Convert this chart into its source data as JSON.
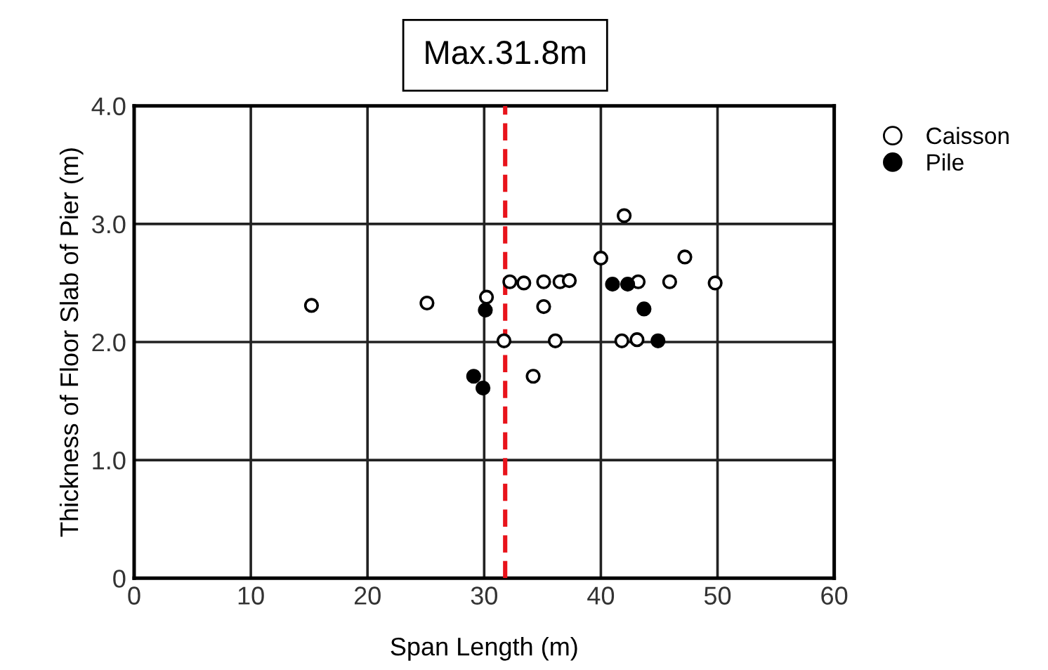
{
  "chart_data": {
    "type": "scatter",
    "xlabel": "Span Length (m)",
    "ylabel": "Thickness of Floor Slab of Pier (m)",
    "series": [
      {
        "name": "Caisson",
        "color": "#ffffff",
        "x": [
          15.2,
          25.1,
          30.2,
          32.2,
          33.4,
          35.1,
          36.5,
          37.3,
          35.1,
          31.7,
          36.1,
          34.2,
          40.0,
          42.0,
          43.2,
          45.9,
          47.2,
          49.8,
          41.8,
          43.1
        ],
        "values": [
          2.31,
          2.33,
          2.38,
          2.51,
          2.5,
          2.51,
          2.51,
          2.52,
          2.3,
          2.01,
          2.01,
          1.71,
          2.71,
          3.07,
          2.51,
          2.51,
          2.72,
          2.5,
          2.01,
          2.02
        ]
      },
      {
        "name": "Pile",
        "color": "#000000",
        "x": [
          30.1,
          29.1,
          29.9,
          41.0,
          42.3,
          43.7,
          44.9
        ],
        "values": [
          2.27,
          1.71,
          1.61,
          2.49,
          2.49,
          2.28,
          2.01
        ]
      }
    ],
    "xlim": [
      0,
      60
    ],
    "xticks": [
      0,
      10,
      20,
      30,
      40,
      50,
      60
    ],
    "ylim": [
      0,
      4
    ],
    "yticks": [
      {
        "value": 0,
        "label": "0"
      },
      {
        "value": 1,
        "label": "1.0"
      },
      {
        "value": 2,
        "label": "2.0"
      },
      {
        "value": 3,
        "label": "3.0"
      },
      {
        "value": 4,
        "label": "4.0"
      }
    ],
    "ref_lines": [
      {
        "axis": "x",
        "value": 31.8,
        "label": "Max.31.8m",
        "color": "#e8131b",
        "line_style": "dashed"
      }
    ],
    "grid": true,
    "legend": "top right",
    "marker": "circle"
  }
}
